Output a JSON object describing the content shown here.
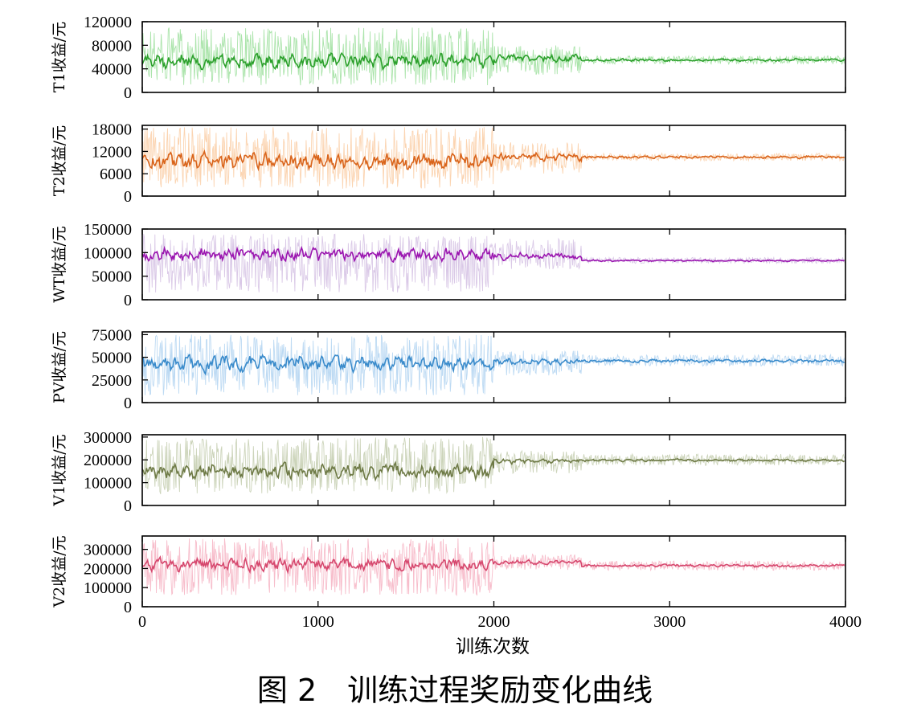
{
  "figure": {
    "caption": "图 2　训练过程奖励变化曲线",
    "xlabel": "训练次数"
  },
  "chart_data": [
    {
      "type": "line",
      "ylabel": "T1收益/元",
      "xlim": [
        0,
        4000
      ],
      "ylim": [
        0,
        120000
      ],
      "yticks": [
        0,
        40000,
        80000,
        120000
      ],
      "xticks": [
        0,
        1000,
        2000,
        3000,
        4000
      ],
      "show_xtick_labels": false,
      "colors": {
        "smooth": "#2ca02c",
        "raw": "#a6e3a6"
      },
      "segments": [
        {
          "x": [
            0,
            2000
          ],
          "mean": 53000,
          "raw_low": 12000,
          "raw_high": 110000,
          "smooth_amp": 14000
        },
        {
          "x": [
            2000,
            2500
          ],
          "mean": 58000,
          "raw_low": 30000,
          "raw_high": 80000,
          "smooth_amp": 7000
        },
        {
          "x": [
            2500,
            4000
          ],
          "mean": 55000,
          "raw_low": 48000,
          "raw_high": 62000,
          "smooth_amp": 2500
        }
      ]
    },
    {
      "type": "line",
      "ylabel": "T2收益/元",
      "xlim": [
        0,
        4000
      ],
      "ylim": [
        0,
        19000
      ],
      "yticks": [
        0,
        6000,
        12000,
        18000
      ],
      "xticks": [
        0,
        1000,
        2000,
        3000,
        4000
      ],
      "show_xtick_labels": false,
      "colors": {
        "smooth": "#d9641b",
        "raw": "#fbd2ad"
      },
      "segments": [
        {
          "x": [
            0,
            2000
          ],
          "mean": 9500,
          "raw_low": 2000,
          "raw_high": 18500,
          "smooth_amp": 2500
        },
        {
          "x": [
            2000,
            2500
          ],
          "mean": 10500,
          "raw_low": 6000,
          "raw_high": 14500,
          "smooth_amp": 1200
        },
        {
          "x": [
            2500,
            4000
          ],
          "mean": 10500,
          "raw_low": 9500,
          "raw_high": 11500,
          "smooth_amp": 400
        }
      ]
    },
    {
      "type": "line",
      "ylabel": "WT收益/元",
      "xlim": [
        0,
        4000
      ],
      "ylim": [
        0,
        150000
      ],
      "yticks": [
        0,
        50000,
        100000,
        150000
      ],
      "xticks": [
        0,
        1000,
        2000,
        3000,
        4000
      ],
      "show_xtick_labels": false,
      "colors": {
        "smooth": "#9b16b0",
        "raw": "#d8c6e6"
      },
      "segments": [
        {
          "x": [
            0,
            2000
          ],
          "mean": 95000,
          "raw_low": 15000,
          "raw_high": 140000,
          "smooth_amp": 15000
        },
        {
          "x": [
            2000,
            2500
          ],
          "mean": 92000,
          "raw_low": 65000,
          "raw_high": 130000,
          "smooth_amp": 8000
        },
        {
          "x": [
            2500,
            4000
          ],
          "mean": 83000,
          "raw_low": 77000,
          "raw_high": 90000,
          "smooth_amp": 2000
        }
      ]
    },
    {
      "type": "line",
      "ylabel": "PV收益/元",
      "xlim": [
        0,
        4000
      ],
      "ylim": [
        0,
        78000
      ],
      "yticks": [
        0,
        25000,
        50000,
        75000
      ],
      "xticks": [
        0,
        1000,
        2000,
        3000,
        4000
      ],
      "show_xtick_labels": false,
      "colors": {
        "smooth": "#3a8bcb",
        "raw": "#b9d8f2"
      },
      "segments": [
        {
          "x": [
            0,
            2000
          ],
          "mean": 43000,
          "raw_low": 8000,
          "raw_high": 75000,
          "smooth_amp": 9000
        },
        {
          "x": [
            2000,
            2500
          ],
          "mean": 45000,
          "raw_low": 30000,
          "raw_high": 58000,
          "smooth_amp": 4000
        },
        {
          "x": [
            2500,
            4000
          ],
          "mean": 46000,
          "raw_low": 40000,
          "raw_high": 53000,
          "smooth_amp": 2000
        }
      ]
    },
    {
      "type": "line",
      "ylabel": "V1收益/元",
      "xlim": [
        0,
        4000
      ],
      "ylim": [
        0,
        310000
      ],
      "yticks": [
        0,
        100000,
        200000,
        300000
      ],
      "xticks": [
        0,
        1000,
        2000,
        3000,
        4000
      ],
      "show_xtick_labels": false,
      "colors": {
        "smooth": "#6e7a46",
        "raw": "#c9d2b6"
      },
      "segments": [
        {
          "x": [
            0,
            2000
          ],
          "mean": 150000,
          "raw_low": 50000,
          "raw_high": 300000,
          "smooth_amp": 35000
        },
        {
          "x": [
            2000,
            2500
          ],
          "mean": 195000,
          "raw_low": 140000,
          "raw_high": 240000,
          "smooth_amp": 12000
        },
        {
          "x": [
            2500,
            4000
          ],
          "mean": 198000,
          "raw_low": 175000,
          "raw_high": 225000,
          "smooth_amp": 6000
        }
      ]
    },
    {
      "type": "line",
      "ylabel": "V2收益/元",
      "xlim": [
        0,
        4000
      ],
      "ylim": [
        0,
        370000
      ],
      "yticks": [
        0,
        100000,
        200000,
        300000
      ],
      "xticks": [
        0,
        1000,
        2000,
        3000,
        4000
      ],
      "show_xtick_labels": true,
      "colors": {
        "smooth": "#d6486e",
        "raw": "#f7b9c8"
      },
      "segments": [
        {
          "x": [
            0,
            2000
          ],
          "mean": 220000,
          "raw_low": 60000,
          "raw_high": 360000,
          "smooth_amp": 35000
        },
        {
          "x": [
            2000,
            2500
          ],
          "mean": 232000,
          "raw_low": 190000,
          "raw_high": 275000,
          "smooth_amp": 12000
        },
        {
          "x": [
            2500,
            4000
          ],
          "mean": 215000,
          "raw_low": 190000,
          "raw_high": 240000,
          "smooth_amp": 8000
        }
      ]
    }
  ]
}
